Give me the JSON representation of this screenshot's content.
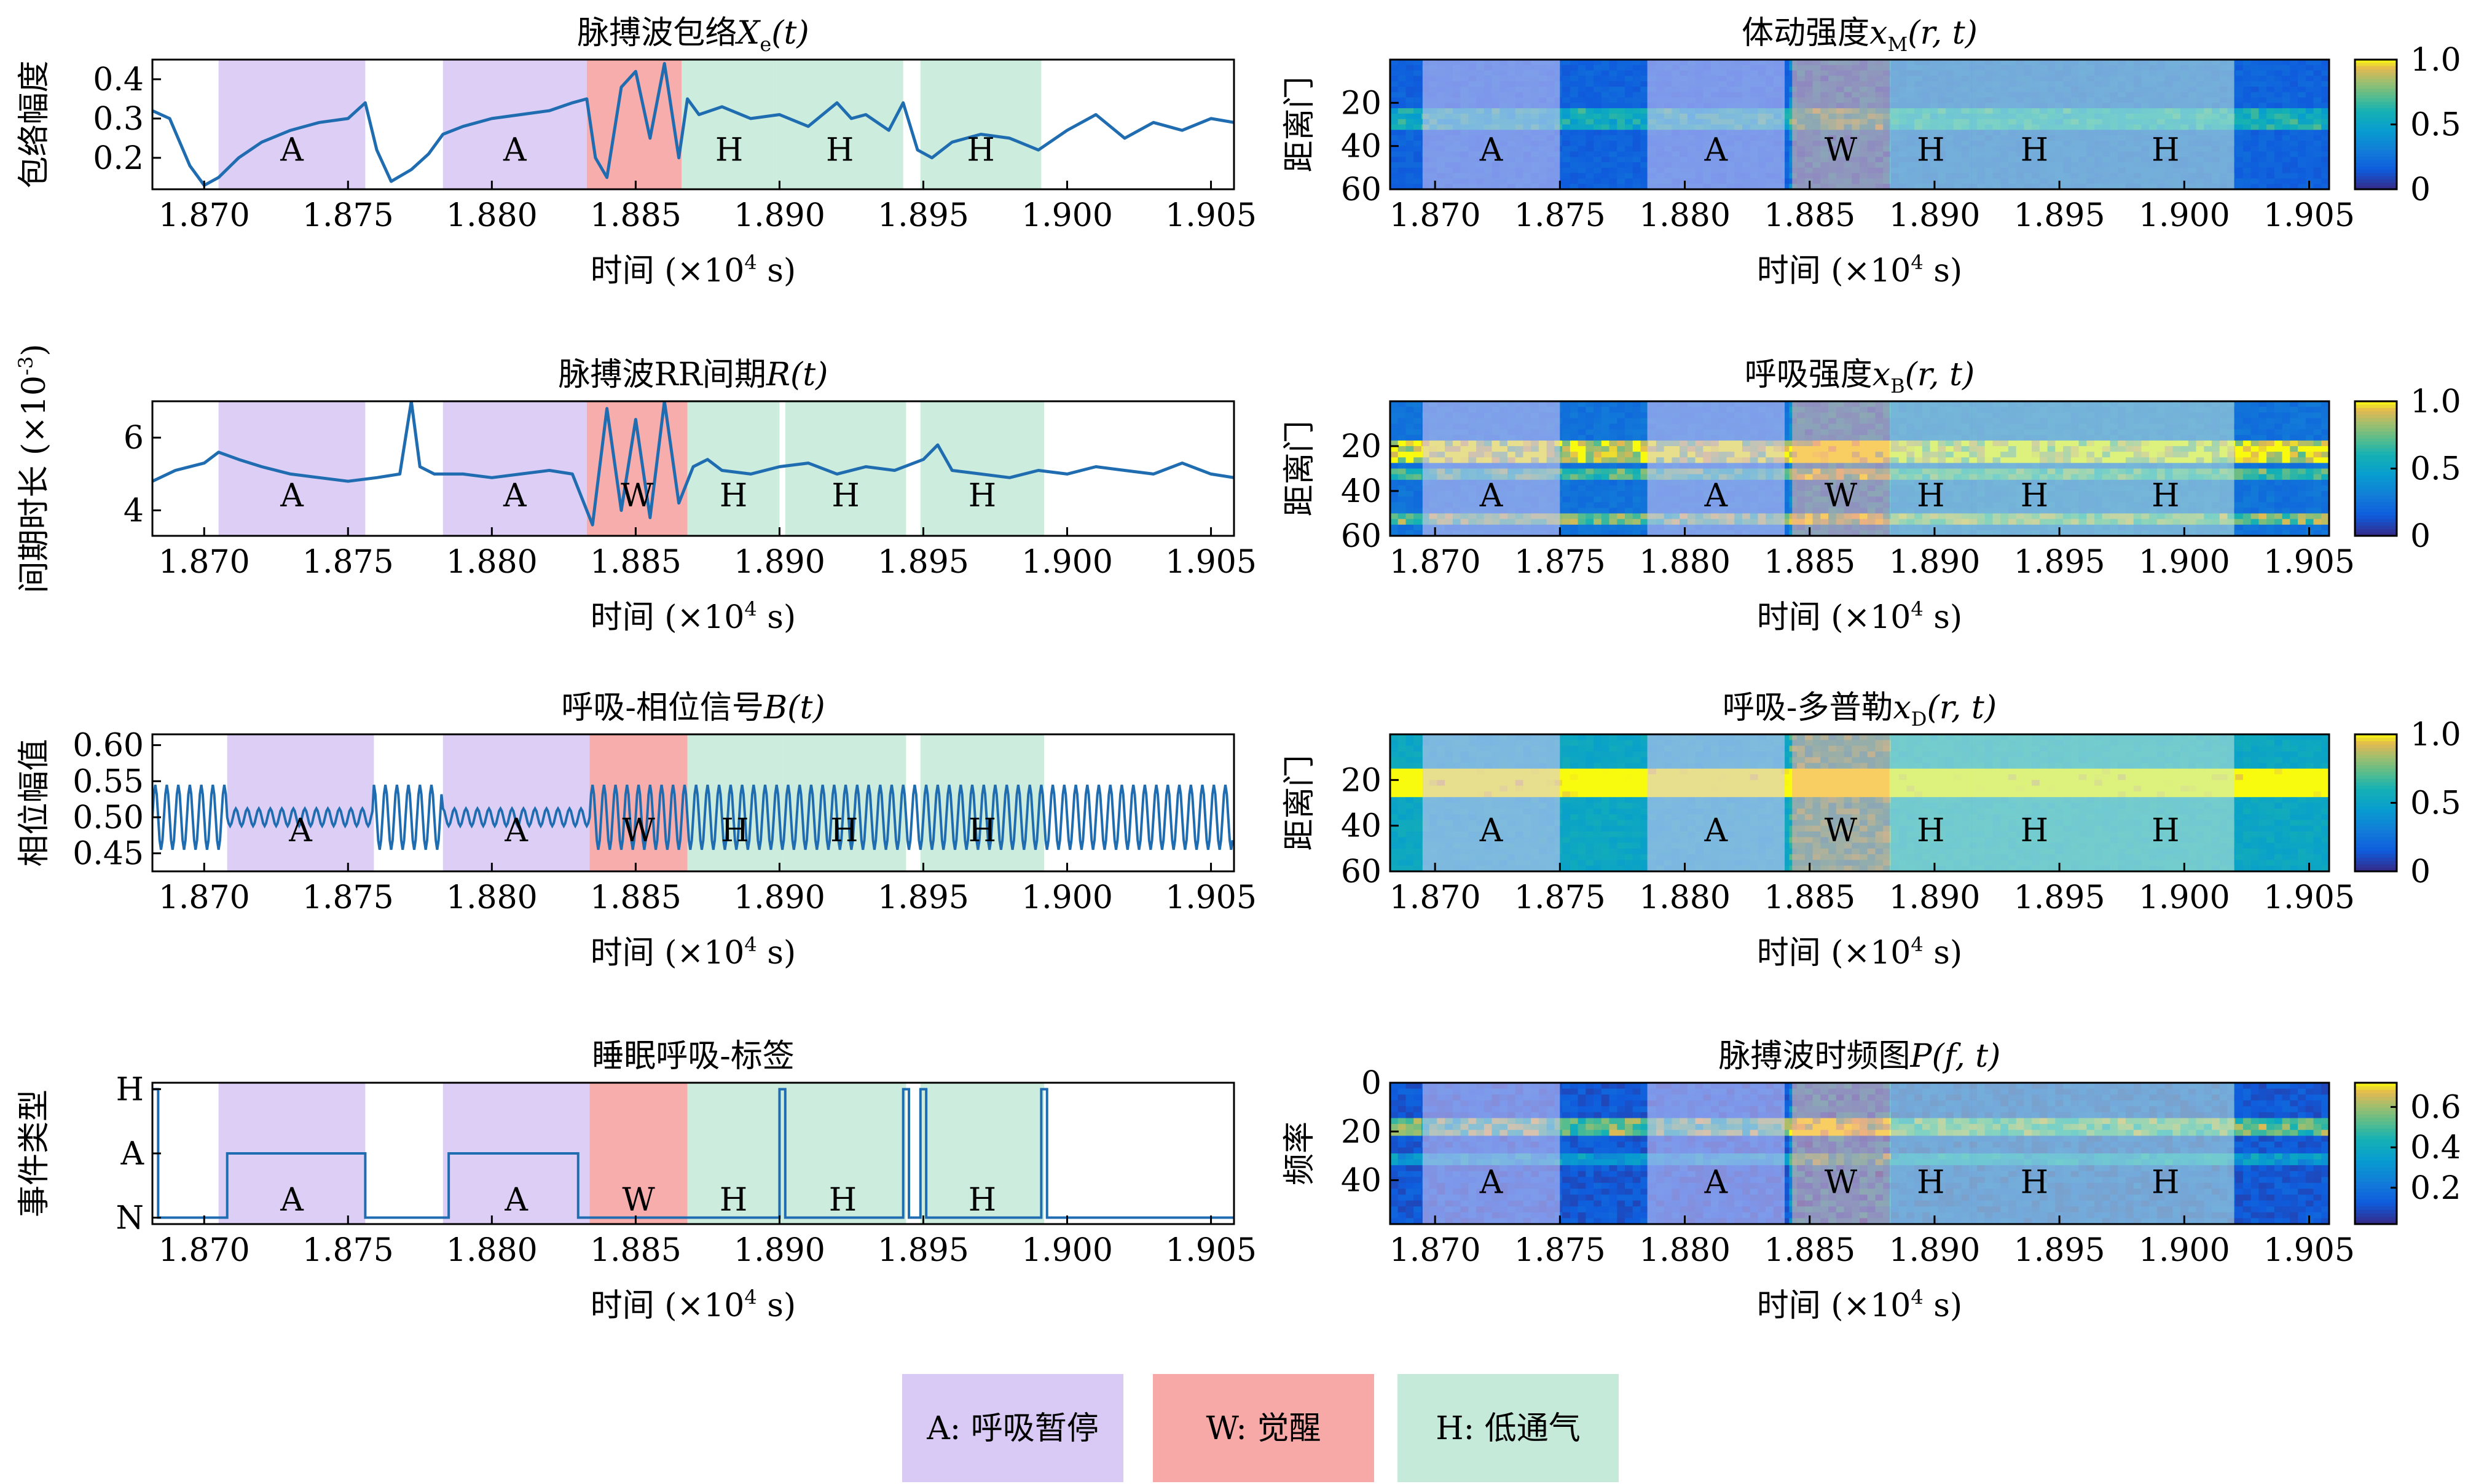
{
  "xaxis": {
    "label": "时间 (×10",
    "label_exp": "4",
    "label_unit": " s)",
    "ticks": [
      "1.870",
      "1.875",
      "1.880",
      "1.885",
      "1.890",
      "1.895",
      "1.900",
      "1.905"
    ],
    "tick_values": [
      1.87,
      1.875,
      1.88,
      1.885,
      1.89,
      1.895,
      1.9,
      1.905
    ],
    "range": [
      1.8682,
      1.9058
    ]
  },
  "event_colors": {
    "A": "#d9c9f5",
    "W": "#f7a9a8",
    "H": "#c6ead9"
  },
  "line_color": "#1f6db0",
  "chart_data": [
    {
      "id": "envelope",
      "type": "line",
      "title": "脉搏波包络",
      "title_var": "X",
      "title_sub": "e",
      "title_arg": "(t)",
      "ylabel": "包络幅度",
      "ylim": [
        0.12,
        0.45
      ],
      "yticks": [
        "0.2",
        "0.3",
        "0.4"
      ],
      "ytick_values": [
        0.2,
        0.3,
        0.4
      ],
      "events": [
        {
          "type": "A",
          "label": "A",
          "start": 1.8705,
          "end": 1.8756
        },
        {
          "type": "A",
          "label": "A",
          "start": 1.8783,
          "end": 1.8833
        },
        {
          "type": "W",
          "label": "",
          "start": 1.8833,
          "end": 1.8866
        },
        {
          "type": "H",
          "label": "H",
          "start": 1.8866,
          "end": 1.8899
        },
        {
          "type": "H",
          "label": "H",
          "start": 1.8899,
          "end": 1.8943
        },
        {
          "type": "H",
          "label": "H",
          "start": 1.8949,
          "end": 1.8991
        }
      ],
      "x": [
        1.8682,
        1.8688,
        1.8695,
        1.87,
        1.8705,
        1.8712,
        1.872,
        1.873,
        1.874,
        1.875,
        1.8756,
        1.876,
        1.8765,
        1.8772,
        1.8778,
        1.8783,
        1.879,
        1.88,
        1.881,
        1.882,
        1.8828,
        1.8833,
        1.8836,
        1.884,
        1.8845,
        1.885,
        1.8855,
        1.886,
        1.8865,
        1.8868,
        1.8872,
        1.888,
        1.889,
        1.89,
        1.891,
        1.892,
        1.8925,
        1.893,
        1.8938,
        1.8943,
        1.8948,
        1.8953,
        1.896,
        1.897,
        1.898,
        1.899,
        1.9,
        1.901,
        1.902,
        1.903,
        1.904,
        1.905,
        1.9058
      ],
      "values": [
        0.32,
        0.3,
        0.18,
        0.13,
        0.15,
        0.2,
        0.24,
        0.27,
        0.29,
        0.3,
        0.34,
        0.22,
        0.14,
        0.17,
        0.21,
        0.26,
        0.28,
        0.3,
        0.31,
        0.32,
        0.34,
        0.35,
        0.2,
        0.15,
        0.38,
        0.42,
        0.25,
        0.44,
        0.2,
        0.35,
        0.31,
        0.33,
        0.3,
        0.31,
        0.28,
        0.34,
        0.3,
        0.31,
        0.27,
        0.34,
        0.22,
        0.2,
        0.24,
        0.26,
        0.25,
        0.22,
        0.27,
        0.31,
        0.25,
        0.29,
        0.27,
        0.3,
        0.29
      ]
    },
    {
      "id": "rr",
      "type": "line",
      "title": "脉搏波RR间期",
      "title_var": "R",
      "title_sub": "",
      "title_arg": "(t)",
      "ylabel": "间期时长 (×10",
      "ylabel_exp": "-3",
      "ylabel_tail": ")",
      "ylim": [
        3.3,
        7.0
      ],
      "yticks": [
        "4",
        "6"
      ],
      "ytick_values": [
        4,
        6
      ],
      "events": [
        {
          "type": "A",
          "label": "A",
          "start": 1.8705,
          "end": 1.8756
        },
        {
          "type": "A",
          "label": "A",
          "start": 1.8783,
          "end": 1.8833
        },
        {
          "type": "W",
          "label": "W",
          "start": 1.8833,
          "end": 1.8868
        },
        {
          "type": "H",
          "label": "H",
          "start": 1.8868,
          "end": 1.89
        },
        {
          "type": "H",
          "label": "H",
          "start": 1.8902,
          "end": 1.8944
        },
        {
          "type": "H",
          "label": "H",
          "start": 1.8949,
          "end": 1.8992
        }
      ],
      "x": [
        1.8682,
        1.869,
        1.87,
        1.8705,
        1.8712,
        1.872,
        1.873,
        1.874,
        1.875,
        1.876,
        1.8768,
        1.8772,
        1.8775,
        1.878,
        1.879,
        1.88,
        1.881,
        1.882,
        1.8828,
        1.8835,
        1.884,
        1.8845,
        1.885,
        1.8855,
        1.886,
        1.8865,
        1.887,
        1.8875,
        1.888,
        1.889,
        1.89,
        1.891,
        1.892,
        1.893,
        1.894,
        1.895,
        1.8955,
        1.896,
        1.897,
        1.898,
        1.899,
        1.9,
        1.901,
        1.902,
        1.903,
        1.904,
        1.905,
        1.9058
      ],
      "values": [
        4.8,
        5.1,
        5.3,
        5.6,
        5.4,
        5.2,
        5.0,
        4.9,
        4.8,
        4.9,
        5.0,
        7.0,
        5.2,
        5.0,
        5.0,
        4.9,
        5.0,
        5.1,
        5.0,
        3.6,
        6.8,
        4.0,
        6.5,
        3.8,
        7.0,
        4.2,
        5.2,
        5.4,
        5.1,
        5.0,
        5.2,
        5.3,
        5.0,
        5.2,
        5.1,
        5.4,
        5.8,
        5.1,
        5.0,
        4.9,
        5.1,
        5.0,
        5.2,
        5.1,
        5.0,
        5.3,
        5.0,
        4.9
      ]
    },
    {
      "id": "phase",
      "type": "line",
      "title": "呼吸-相位信号",
      "title_var": "B",
      "title_sub": "",
      "title_arg": "(t)",
      "ylabel": "相位幅值",
      "ylim": [
        0.425,
        0.615
      ],
      "yticks": [
        "0.45",
        "0.50",
        "0.55",
        "0.60"
      ],
      "ytick_values": [
        0.45,
        0.5,
        0.55,
        0.6
      ],
      "events": [
        {
          "type": "A",
          "label": "A",
          "start": 1.8708,
          "end": 1.8759
        },
        {
          "type": "A",
          "label": "A",
          "start": 1.8783,
          "end": 1.8834
        },
        {
          "type": "W",
          "label": "W",
          "start": 1.8834,
          "end": 1.8868
        },
        {
          "type": "H",
          "label": "H",
          "start": 1.8868,
          "end": 1.8901
        },
        {
          "type": "H",
          "label": "H",
          "start": 1.8901,
          "end": 1.8944
        },
        {
          "type": "H",
          "label": "H",
          "start": 1.8949,
          "end": 1.8992
        }
      ],
      "signal": {
        "mean": 0.5,
        "amp": 0.045,
        "period": 0.0004
      },
      "quiet_amp": 0.012
    },
    {
      "id": "labels",
      "type": "step",
      "title": "睡眠呼吸-标签",
      "ylabel": "事件类型",
      "ylim": [
        -0.1,
        2.1
      ],
      "yticks": [
        "N",
        "A",
        "H"
      ],
      "ytick_values": [
        0,
        1,
        2
      ],
      "events": [
        {
          "type": "A",
          "label": "A",
          "start": 1.8705,
          "end": 1.8756
        },
        {
          "type": "A",
          "label": "A",
          "start": 1.8783,
          "end": 1.8834
        },
        {
          "type": "W",
          "label": "W",
          "start": 1.8834,
          "end": 1.8868
        },
        {
          "type": "H",
          "label": "H",
          "start": 1.8868,
          "end": 1.89
        },
        {
          "type": "H",
          "label": "H",
          "start": 1.89,
          "end": 1.8944
        },
        {
          "type": "H",
          "label": "H",
          "start": 1.8949,
          "end": 1.8992
        }
      ],
      "steps": [
        {
          "x": 1.8682,
          "v": 2
        },
        {
          "x": 1.8684,
          "v": 0
        },
        {
          "x": 1.8708,
          "v": 1
        },
        {
          "x": 1.8756,
          "v": 0
        },
        {
          "x": 1.8785,
          "v": 1
        },
        {
          "x": 1.883,
          "v": 0
        },
        {
          "x": 1.89,
          "v": 2
        },
        {
          "x": 1.8902,
          "v": 0
        },
        {
          "x": 1.8943,
          "v": 2
        },
        {
          "x": 1.8945,
          "v": 0
        },
        {
          "x": 1.8949,
          "v": 2
        },
        {
          "x": 1.8951,
          "v": 0
        },
        {
          "x": 1.8991,
          "v": 2
        },
        {
          "x": 1.8993,
          "v": 0
        },
        {
          "x": 1.9058,
          "v": 0
        }
      ]
    },
    {
      "id": "motion",
      "type": "heatmap",
      "title": "体动强度",
      "title_var": "x",
      "title_sub": "M",
      "title_arg": "(r, t)",
      "ylabel": "距离门",
      "ylim": [
        0,
        60
      ],
      "yticks": [
        "20",
        "40",
        "60"
      ],
      "ytick_values": [
        20,
        40,
        60
      ],
      "colorbar_ticks": [
        "1.0",
        "0.5",
        "0"
      ],
      "colorbar_values": [
        1.0,
        0.5,
        0.0
      ],
      "colorbar_range": [
        0,
        1
      ],
      "hot_rows": [
        [
          22,
          32,
          0.45
        ]
      ],
      "base": 0.18,
      "events": [
        {
          "type": "A",
          "label": "A",
          "start": 1.8695,
          "end": 1.875
        },
        {
          "type": "A",
          "label": "A",
          "start": 1.8785,
          "end": 1.884
        },
        {
          "type": "W",
          "label": "W",
          "start": 1.8843,
          "end": 1.8882
        },
        {
          "type": "H",
          "label": "H",
          "start": 1.8882,
          "end": 1.8915
        },
        {
          "type": "H",
          "label": "H",
          "start": 1.8915,
          "end": 1.8965
        },
        {
          "type": "H",
          "label": "H",
          "start": 1.8965,
          "end": 1.902
        }
      ]
    },
    {
      "id": "breath",
      "type": "heatmap",
      "title": "呼吸强度",
      "title_var": "x",
      "title_sub": "B",
      "title_arg": "(r, t)",
      "ylabel": "距离门",
      "ylim": [
        0,
        60
      ],
      "yticks": [
        "20",
        "40",
        "60"
      ],
      "ytick_values": [
        20,
        40,
        60
      ],
      "colorbar_ticks": [
        "1.0",
        "0.5",
        "0"
      ],
      "colorbar_values": [
        1.0,
        0.5,
        0.0
      ],
      "colorbar_range": [
        0,
        1
      ],
      "hot_rows": [
        [
          18,
          28,
          0.8
        ],
        [
          30,
          36,
          0.5
        ],
        [
          50,
          55,
          0.6
        ]
      ],
      "base": 0.25,
      "events": [
        {
          "type": "A",
          "label": "A",
          "start": 1.8695,
          "end": 1.875
        },
        {
          "type": "A",
          "label": "A",
          "start": 1.8785,
          "end": 1.884
        },
        {
          "type": "W",
          "label": "W",
          "start": 1.8843,
          "end": 1.8882
        },
        {
          "type": "H",
          "label": "H",
          "start": 1.8882,
          "end": 1.8915
        },
        {
          "type": "H",
          "label": "H",
          "start": 1.8915,
          "end": 1.8965
        },
        {
          "type": "H",
          "label": "H",
          "start": 1.8965,
          "end": 1.902
        }
      ]
    },
    {
      "id": "doppler",
      "type": "heatmap",
      "title": "呼吸-多普勒",
      "title_var": "x",
      "title_sub": "D",
      "title_arg": "(r, t)",
      "ylabel": "距离门",
      "ylim": [
        0,
        60
      ],
      "yticks": [
        "20",
        "40",
        "60"
      ],
      "ytick_values": [
        20,
        40,
        60
      ],
      "colorbar_ticks": [
        "1.0",
        "0.5",
        "0"
      ],
      "colorbar_values": [
        1.0,
        0.5,
        0.0
      ],
      "colorbar_range": [
        0,
        1
      ],
      "hot_rows": [
        [
          16,
          28,
          0.75
        ]
      ],
      "base": 0.52,
      "events": [
        {
          "type": "A",
          "label": "A",
          "start": 1.8695,
          "end": 1.875
        },
        {
          "type": "A",
          "label": "A",
          "start": 1.8785,
          "end": 1.884
        },
        {
          "type": "W",
          "label": "W",
          "start": 1.8843,
          "end": 1.8882
        },
        {
          "type": "H",
          "label": "H",
          "start": 1.8882,
          "end": 1.8915
        },
        {
          "type": "H",
          "label": "H",
          "start": 1.8915,
          "end": 1.8965
        },
        {
          "type": "H",
          "label": "H",
          "start": 1.8965,
          "end": 1.902
        }
      ]
    },
    {
      "id": "spectrogram",
      "type": "heatmap",
      "title": "脉搏波时频图",
      "title_var": "P",
      "title_sub": "",
      "title_arg": "(f, t)",
      "ylabel": "频率",
      "ylim": [
        0,
        58
      ],
      "yticks": [
        "0",
        "20",
        "40"
      ],
      "ytick_values": [
        0,
        20,
        40
      ],
      "colorbar_ticks": [
        "0.6",
        "0.4",
        "0.2"
      ],
      "colorbar_values": [
        0.6,
        0.4,
        0.2
      ],
      "colorbar_range": [
        0.02,
        0.72
      ],
      "hot_rows": [
        [
          14,
          22,
          0.48
        ],
        [
          30,
          34,
          0.25
        ]
      ],
      "base": 0.12,
      "events": [
        {
          "type": "A",
          "label": "A",
          "start": 1.8695,
          "end": 1.875
        },
        {
          "type": "A",
          "label": "A",
          "start": 1.8785,
          "end": 1.884
        },
        {
          "type": "W",
          "label": "W",
          "start": 1.8843,
          "end": 1.8882
        },
        {
          "type": "H",
          "label": "H",
          "start": 1.8882,
          "end": 1.8915
        },
        {
          "type": "H",
          "label": "H",
          "start": 1.8915,
          "end": 1.8965
        },
        {
          "type": "H",
          "label": "H",
          "start": 1.8965,
          "end": 1.902
        }
      ]
    }
  ],
  "legend": [
    {
      "type": "A",
      "label": "A: 呼吸暂停"
    },
    {
      "type": "W",
      "label": "W: 觉醒"
    },
    {
      "type": "H",
      "label": "H: 低通气"
    }
  ]
}
